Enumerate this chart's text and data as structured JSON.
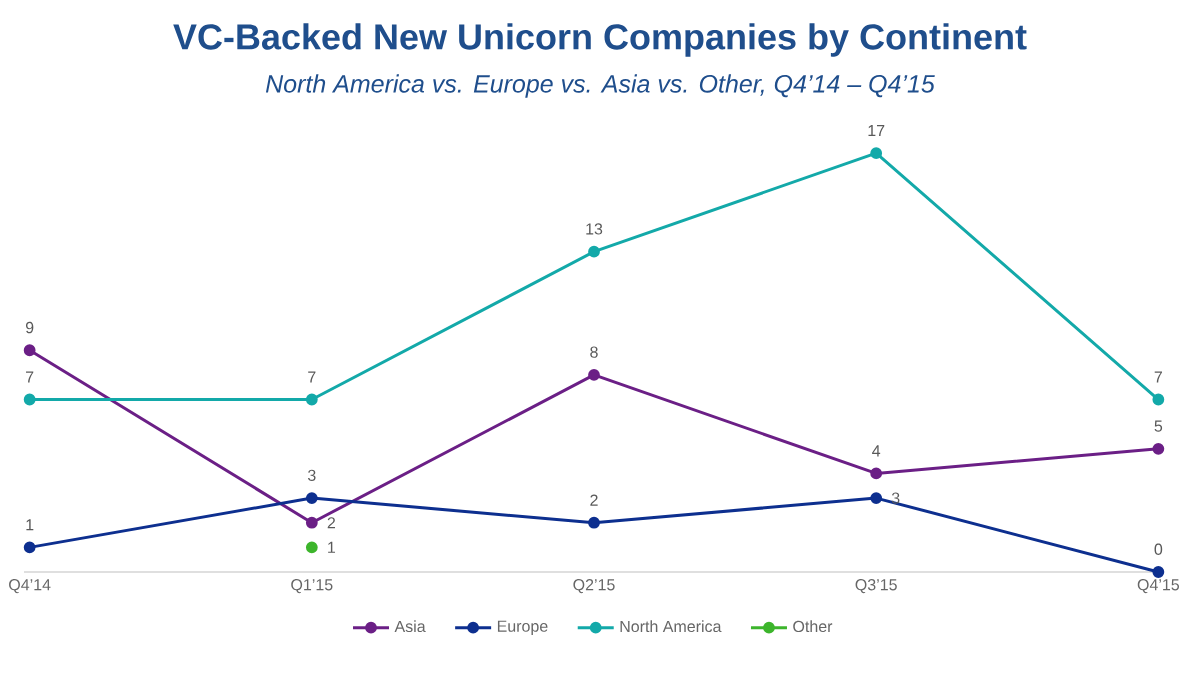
{
  "chart_data": {
    "type": "line",
    "title": "VC-Backed New Unicorn Companies by Continent",
    "subtitle": "North America vs. Europe vs. Asia vs. Other, Q4’14 – Q4’15",
    "categories": [
      "Q4’14",
      "Q1’15",
      "Q2’15",
      "Q3’15",
      "Q4’15"
    ],
    "series": [
      {
        "name": "Asia",
        "color": "#6b1f86",
        "values": [
          9,
          2,
          8,
          4,
          5
        ]
      },
      {
        "name": "Europe",
        "color": "#0d2f8f",
        "values": [
          1,
          3,
          2,
          3,
          0
        ]
      },
      {
        "name": "North America",
        "color": "#13a9a9",
        "values": [
          7,
          7,
          13,
          17,
          7
        ]
      },
      {
        "name": "Other",
        "color": "#3db52c",
        "values": [
          null,
          1,
          null,
          null,
          null
        ]
      }
    ],
    "data_labels": true,
    "legend": "bottom",
    "marker": "circle",
    "line_style": "solid"
  }
}
